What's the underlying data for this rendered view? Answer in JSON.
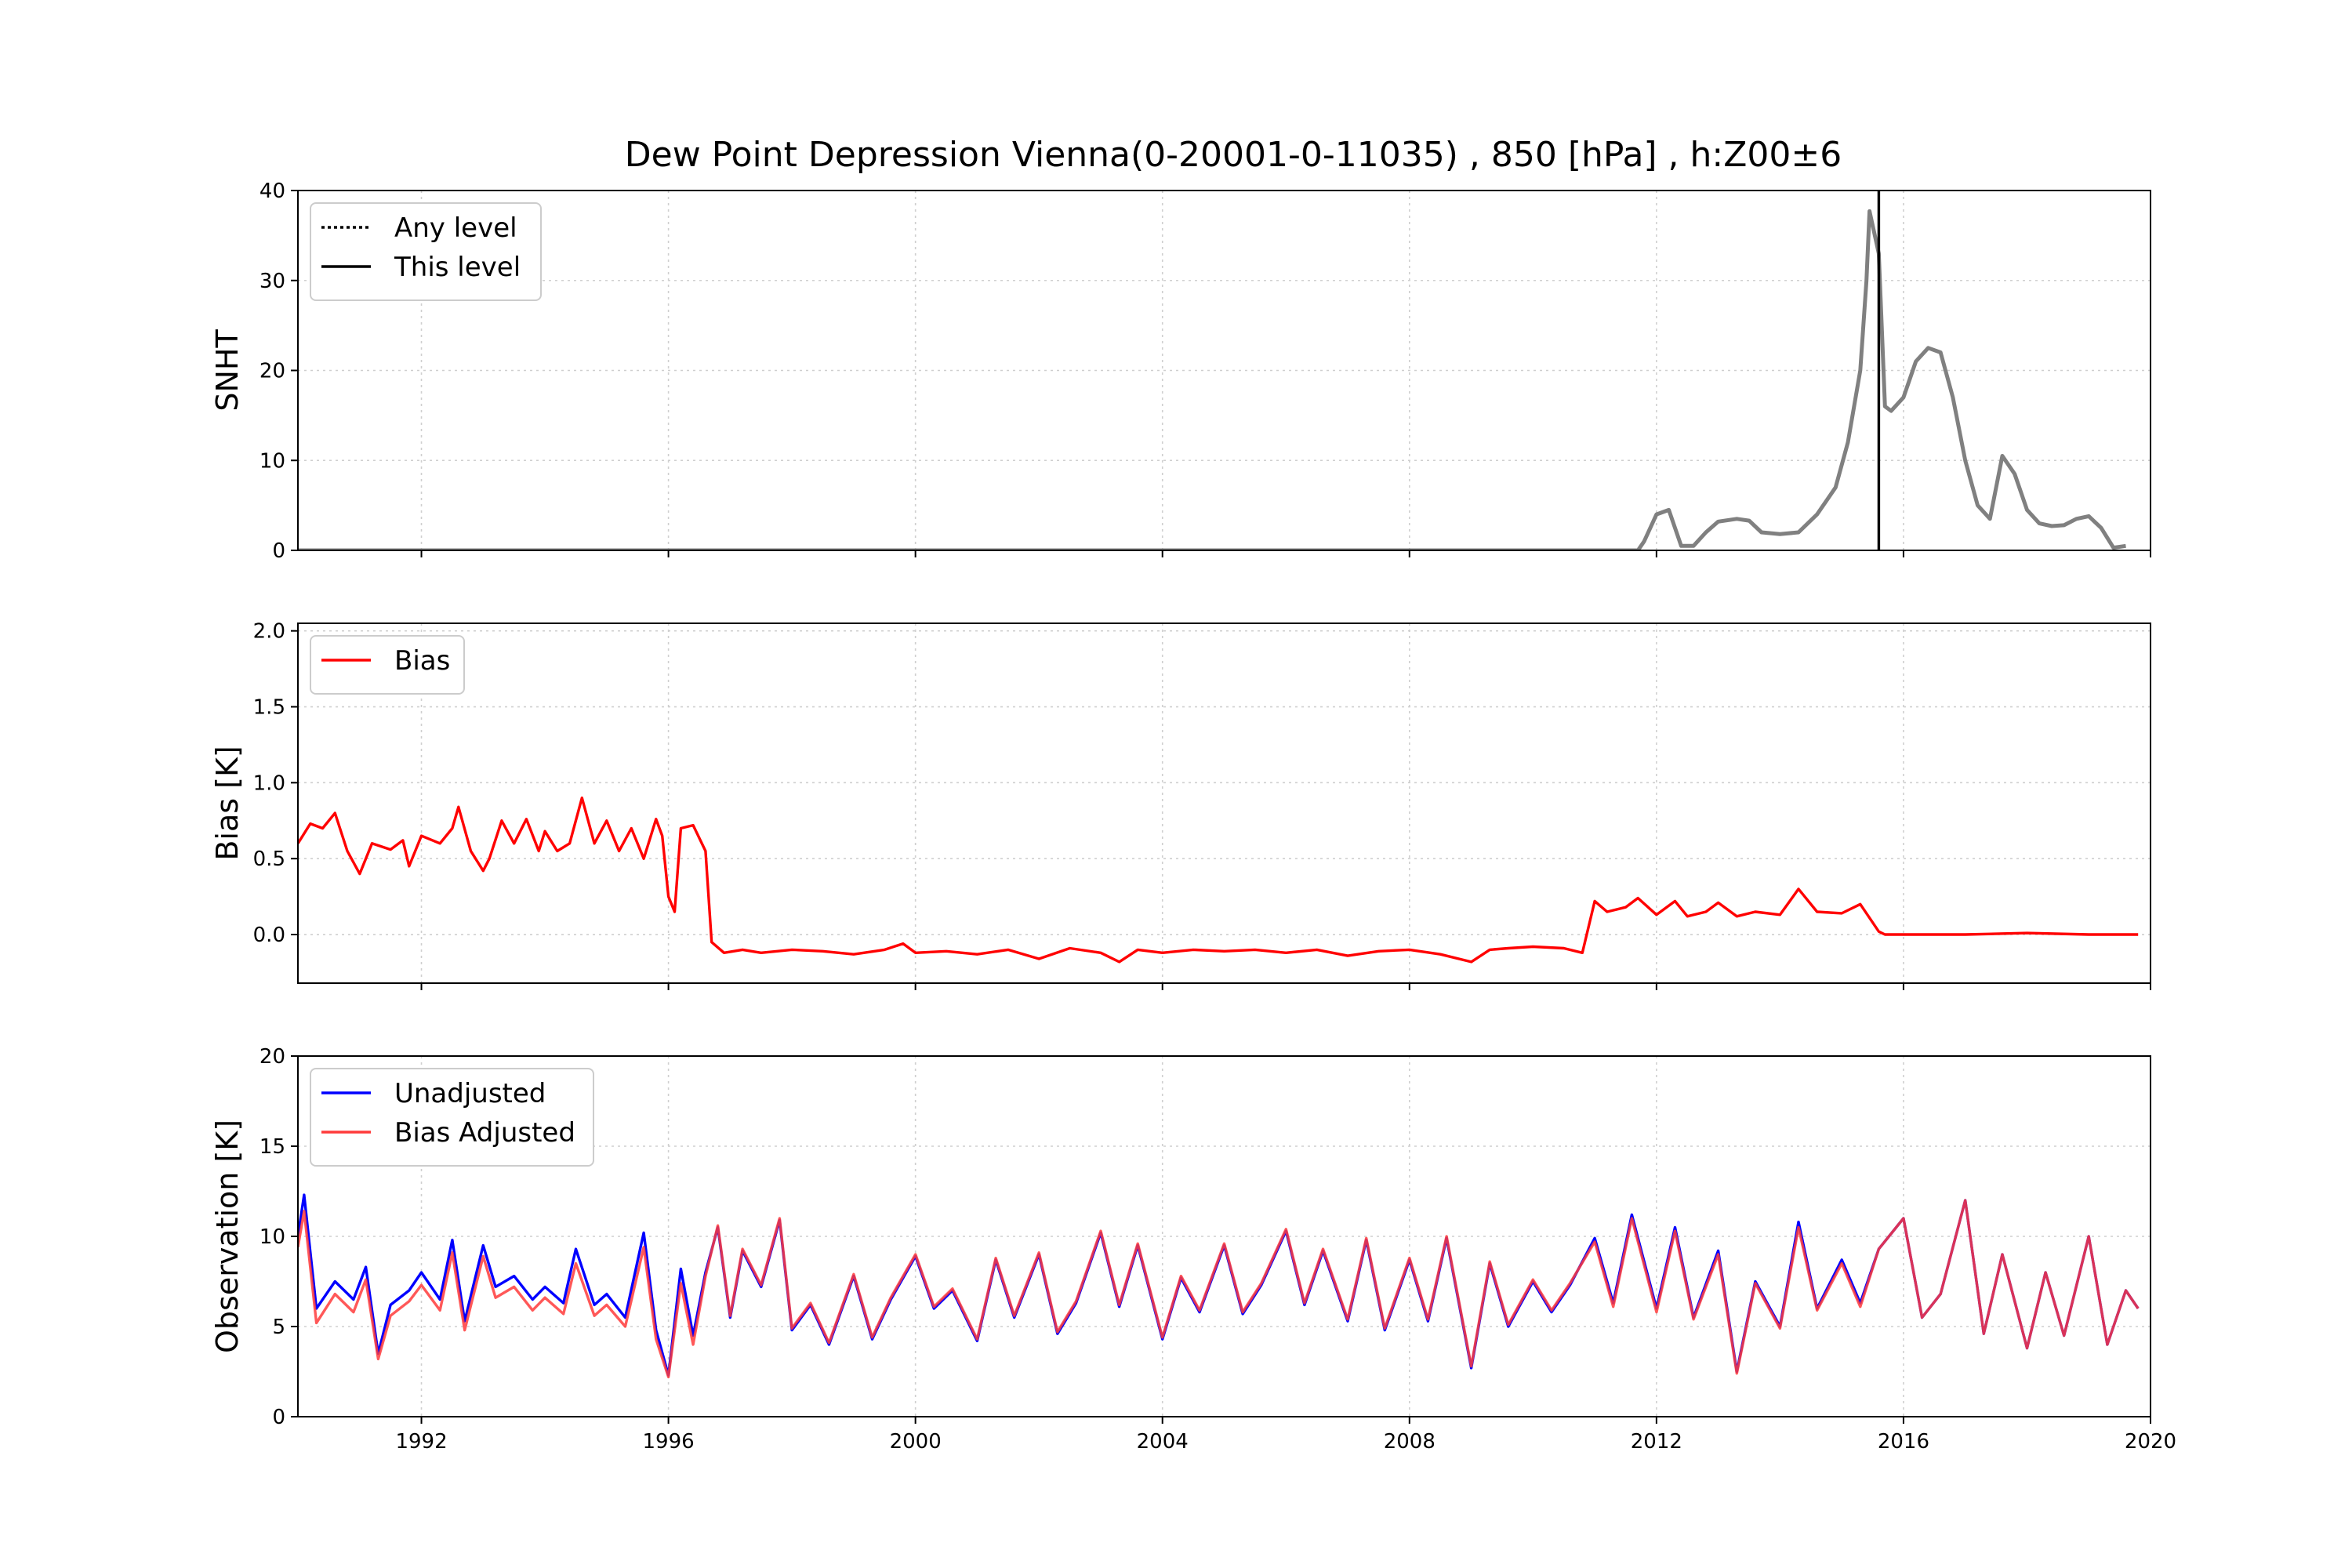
{
  "figure": {
    "title": "Dew Point Depression Vienna(0-20001-0-11035) , 850 [hPa] , h:Z00±6"
  },
  "chart_data": [
    {
      "type": "line",
      "ylabel": "SNHT",
      "xlim": [
        1990.0,
        2020.0
      ],
      "ylim": [
        0,
        40
      ],
      "yticks": [
        "0",
        "10",
        "20",
        "30",
        "40"
      ],
      "grid": true,
      "legend": {
        "position": "upper left",
        "entries": [
          {
            "label": "Any level",
            "style": "dotted",
            "color": "#000000"
          },
          {
            "label": "This level",
            "style": "solid",
            "color": "#000000"
          }
        ]
      },
      "vline": {
        "x": 2015.6,
        "color": "#000000"
      },
      "series": [
        {
          "color": "#808080",
          "x": [
            1990.0,
            2011.7,
            2011.8,
            2012.0,
            2012.2,
            2012.4,
            2012.6,
            2012.8,
            2013.0,
            2013.3,
            2013.5,
            2013.7,
            2014.0,
            2014.3,
            2014.6,
            2014.9,
            2015.1,
            2015.3,
            2015.4,
            2015.45,
            2015.6,
            2015.7,
            2015.8,
            2016.0,
            2016.2,
            2016.4,
            2016.6,
            2016.8,
            2017.0,
            2017.2,
            2017.4,
            2017.6,
            2017.8,
            2018.0,
            2018.2,
            2018.4,
            2018.6,
            2018.8,
            2019.0,
            2019.2,
            2019.4,
            2019.6
          ],
          "y": [
            0,
            0,
            1,
            4,
            4.5,
            0.5,
            0.5,
            2,
            3.2,
            3.5,
            3.3,
            2,
            1.8,
            2,
            4,
            7,
            12,
            20,
            30,
            37.7,
            33,
            16,
            15.5,
            17,
            21,
            22.5,
            22,
            17,
            10,
            5,
            3.5,
            10.5,
            8.5,
            4.5,
            3,
            2.7,
            2.8,
            3.5,
            3.8,
            2.5,
            0.3,
            0.5
          ]
        }
      ]
    },
    {
      "type": "line",
      "ylabel": "Bias [K]",
      "xlim": [
        1990.0,
        2020.0
      ],
      "ylim": [
        -0.32,
        2.05
      ],
      "yticks": [
        "0.0",
        "0.5",
        "1.0",
        "1.5",
        "2.0"
      ],
      "grid": true,
      "legend": {
        "position": "upper left",
        "entries": [
          {
            "label": "Bias",
            "style": "solid",
            "color": "#ff0000"
          }
        ]
      },
      "series": [
        {
          "name": "Bias",
          "color": "#ff0000",
          "x": [
            1990.0,
            1990.2,
            1990.4,
            1990.6,
            1990.8,
            1991.0,
            1991.2,
            1991.5,
            1991.7,
            1991.8,
            1992.0,
            1992.3,
            1992.5,
            1992.6,
            1992.8,
            1993.0,
            1993.1,
            1993.3,
            1993.5,
            1993.7,
            1993.9,
            1994.0,
            1994.2,
            1994.4,
            1994.6,
            1994.8,
            1995.0,
            1995.2,
            1995.4,
            1995.6,
            1995.8,
            1995.9,
            1996.0,
            1996.1,
            1996.2,
            1996.4,
            1996.6,
            1996.7,
            1996.9,
            1997.2,
            1997.5,
            1998.0,
            1998.5,
            1999.0,
            1999.5,
            1999.8,
            2000.0,
            2000.5,
            2001.0,
            2001.5,
            2002.0,
            2002.5,
            2003.0,
            2003.3,
            2003.6,
            2004.0,
            2004.5,
            2005.0,
            2005.5,
            2006.0,
            2006.5,
            2007.0,
            2007.5,
            2008.0,
            2008.5,
            2009.0,
            2009.3,
            2009.6,
            2010.0,
            2010.5,
            2010.8,
            2011.0,
            2011.2,
            2011.5,
            2011.7,
            2012.0,
            2012.3,
            2012.5,
            2012.8,
            2013.0,
            2013.3,
            2013.6,
            2014.0,
            2014.3,
            2014.6,
            2015.0,
            2015.3,
            2015.6,
            2015.7,
            2016.0,
            2017.0,
            2018.0,
            2019.0,
            2019.8
          ],
          "y": [
            0.6,
            0.73,
            0.7,
            0.8,
            0.55,
            0.4,
            0.6,
            0.56,
            0.62,
            0.45,
            0.65,
            0.6,
            0.7,
            0.84,
            0.55,
            0.42,
            0.5,
            0.75,
            0.6,
            0.76,
            0.55,
            0.68,
            0.55,
            0.6,
            0.9,
            0.6,
            0.75,
            0.55,
            0.7,
            0.5,
            0.76,
            0.65,
            0.25,
            0.15,
            0.7,
            0.72,
            0.55,
            -0.05,
            -0.12,
            -0.1,
            -0.12,
            -0.1,
            -0.11,
            -0.13,
            -0.1,
            -0.06,
            -0.12,
            -0.11,
            -0.13,
            -0.1,
            -0.16,
            -0.09,
            -0.12,
            -0.18,
            -0.1,
            -0.12,
            -0.1,
            -0.11,
            -0.1,
            -0.12,
            -0.1,
            -0.14,
            -0.11,
            -0.1,
            -0.13,
            -0.18,
            -0.1,
            -0.09,
            -0.08,
            -0.09,
            -0.12,
            0.22,
            0.15,
            0.18,
            0.24,
            0.13,
            0.22,
            0.12,
            0.15,
            0.21,
            0.12,
            0.15,
            0.13,
            0.3,
            0.15,
            0.14,
            0.2,
            0.02,
            0.0,
            0.0,
            0.0,
            0.01,
            0.0,
            0.0
          ]
        }
      ]
    },
    {
      "type": "line",
      "ylabel": "Observation [K]",
      "xlim": [
        1990.0,
        2020.0
      ],
      "ylim": [
        0,
        20
      ],
      "yticks": [
        "0",
        "5",
        "10",
        "15",
        "20"
      ],
      "xticks": [
        "1992",
        "1996",
        "2000",
        "2004",
        "2008",
        "2012",
        "2016",
        "2020"
      ],
      "grid": true,
      "legend": {
        "position": "upper left",
        "entries": [
          {
            "label": "Unadjusted",
            "style": "solid",
            "color": "#0000ff"
          },
          {
            "label": "Bias Adjusted",
            "style": "solid",
            "color": "#ff3b3b"
          }
        ]
      },
      "series": [
        {
          "name": "Unadjusted",
          "color": "#0000ff",
          "x": [
            1990.0,
            1990.1,
            1990.3,
            1990.6,
            1990.9,
            1991.1,
            1991.3,
            1991.5,
            1991.8,
            1992.0,
            1992.3,
            1992.5,
            1992.7,
            1993.0,
            1993.2,
            1993.5,
            1993.8,
            1994.0,
            1994.3,
            1994.5,
            1994.8,
            1995.0,
            1995.3,
            1995.6,
            1995.8,
            1996.0,
            1996.2,
            1996.4,
            1996.6,
            1996.8,
            1997.0,
            1997.2,
            1997.5,
            1997.8,
            1998.0,
            1998.3,
            1998.6,
            1999.0,
            1999.3,
            1999.6,
            2000.0,
            2000.3,
            2000.6,
            2001.0,
            2001.3,
            2001.6,
            2002.0,
            2002.3,
            2002.6,
            2003.0,
            2003.3,
            2003.6,
            2004.0,
            2004.3,
            2004.6,
            2005.0,
            2005.3,
            2005.6,
            2006.0,
            2006.3,
            2006.6,
            2007.0,
            2007.3,
            2007.6,
            2008.0,
            2008.3,
            2008.6,
            2009.0,
            2009.3,
            2009.6,
            2010.0,
            2010.3,
            2010.6,
            2011.0,
            2011.3,
            2011.6,
            2012.0,
            2012.3,
            2012.6,
            2013.0,
            2013.3,
            2013.6,
            2014.0,
            2014.3,
            2014.6,
            2015.0,
            2015.3,
            2015.6,
            2016.0,
            2016.3,
            2016.6,
            2017.0,
            2017.3,
            2017.6,
            2018.0,
            2018.3,
            2018.6,
            2019.0,
            2019.3,
            2019.6,
            2019.8
          ],
          "y": [
            10,
            12.3,
            6,
            7.5,
            6.5,
            8.3,
            3.5,
            6.2,
            7,
            8,
            6.5,
            9.8,
            5.3,
            9.5,
            7.2,
            7.8,
            6.5,
            7.2,
            6.3,
            9.3,
            6.2,
            6.8,
            5.5,
            10.2,
            4.8,
            2.3,
            8.2,
            4.5,
            8,
            10.5,
            5.5,
            9.2,
            7.2,
            10.9,
            4.8,
            6.2,
            4,
            7.8,
            4.3,
            6.5,
            8.9,
            6,
            7,
            4.2,
            8.7,
            5.5,
            9,
            4.6,
            6.3,
            10.2,
            6.1,
            9.5,
            4.3,
            7.7,
            5.8,
            9.5,
            5.7,
            7.3,
            10.3,
            6.2,
            9.2,
            5.3,
            9.8,
            4.8,
            8.7,
            5.3,
            9.9,
            2.7,
            8.5,
            5,
            7.5,
            5.8,
            7.3,
            9.9,
            6.3,
            11.2,
            6,
            10.5,
            5.5,
            9.2,
            2.5,
            7.5,
            5,
            10.8,
            6,
            8.7,
            6.3,
            9.3,
            11,
            5.5,
            6.8,
            12,
            4.6,
            9,
            3.8,
            8,
            4.5,
            10,
            4,
            7,
            6
          ]
        },
        {
          "name": "Bias Adjusted",
          "color": "#ff3b3b",
          "x": [
            1990.0,
            1990.1,
            1990.3,
            1990.6,
            1990.9,
            1991.1,
            1991.3,
            1991.5,
            1991.8,
            1992.0,
            1992.3,
            1992.5,
            1992.7,
            1993.0,
            1993.2,
            1993.5,
            1993.8,
            1994.0,
            1994.3,
            1994.5,
            1994.8,
            1995.0,
            1995.3,
            1995.6,
            1995.8,
            1996.0,
            1996.2,
            1996.4,
            1996.6,
            1996.8,
            1997.0,
            1997.2,
            1997.5,
            1997.8,
            1998.0,
            1998.3,
            1998.6,
            1999.0,
            1999.3,
            1999.6,
            2000.0,
            2000.3,
            2000.6,
            2001.0,
            2001.3,
            2001.6,
            2002.0,
            2002.3,
            2002.6,
            2003.0,
            2003.3,
            2003.6,
            2004.0,
            2004.3,
            2004.6,
            2005.0,
            2005.3,
            2005.6,
            2006.0,
            2006.3,
            2006.6,
            2007.0,
            2007.3,
            2007.6,
            2008.0,
            2008.3,
            2008.6,
            2009.0,
            2009.3,
            2009.6,
            2010.0,
            2010.3,
            2010.6,
            2011.0,
            2011.3,
            2011.6,
            2012.0,
            2012.3,
            2012.6,
            2013.0,
            2013.3,
            2013.6,
            2014.0,
            2014.3,
            2014.6,
            2015.0,
            2015.3,
            2015.6,
            2016.0,
            2016.3,
            2016.6,
            2017.0,
            2017.3,
            2017.6,
            2018.0,
            2018.3,
            2018.6,
            2019.0,
            2019.3,
            2019.6,
            2019.8
          ],
          "y": [
            9.4,
            11.4,
            5.2,
            6.8,
            5.8,
            7.6,
            3.2,
            5.6,
            6.4,
            7.3,
            5.9,
            9.1,
            4.8,
            8.9,
            6.6,
            7.2,
            5.9,
            6.6,
            5.7,
            8.5,
            5.6,
            6.2,
            5,
            9.4,
            4.3,
            2.2,
            7.4,
            4,
            7.8,
            10.6,
            5.6,
            9.3,
            7.3,
            11,
            4.9,
            6.3,
            4.1,
            7.9,
            4.4,
            6.6,
            9,
            6.1,
            7.1,
            4.3,
            8.8,
            5.6,
            9.1,
            4.7,
            6.4,
            10.3,
            6.2,
            9.6,
            4.4,
            7.8,
            5.9,
            9.6,
            5.8,
            7.4,
            10.4,
            6.3,
            9.3,
            5.4,
            9.9,
            4.9,
            8.8,
            5.4,
            10,
            2.8,
            8.6,
            5.1,
            7.6,
            5.9,
            7.4,
            9.7,
            6.1,
            11,
            5.8,
            10.3,
            5.4,
            9,
            2.4,
            7.4,
            4.9,
            10.5,
            5.9,
            8.5,
            6.1,
            9.3,
            11,
            5.5,
            6.8,
            12,
            4.6,
            9,
            3.8,
            8,
            4.5,
            10,
            4,
            7,
            6
          ]
        }
      ]
    }
  ]
}
